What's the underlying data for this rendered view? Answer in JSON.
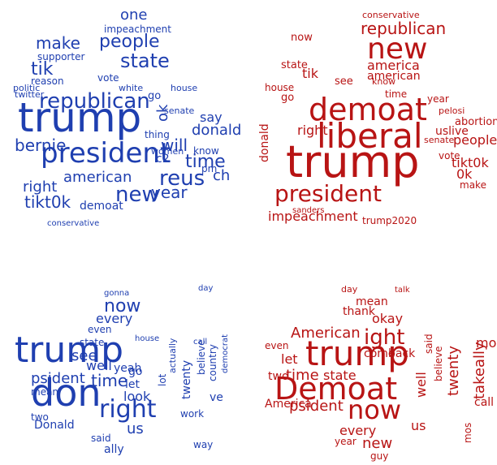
{
  "clouds": [
    {
      "color": "#1f3fb0",
      "words": [
        "trump",
        "president",
        "republican",
        "people",
        "state",
        "make",
        "tik",
        "one",
        "bernie",
        "reus",
        "new",
        "year",
        "american",
        "tikt0k",
        "right",
        "donald",
        "time",
        "will",
        "say",
        "demoat",
        "impeachment",
        "supporter",
        "reason",
        "conservative",
        "ch",
        "c2",
        "ok",
        "know",
        "pm",
        "thing",
        "women",
        "senate",
        "house",
        "white",
        "twitter",
        "politic",
        "go",
        "vote"
      ]
    },
    {
      "color": "#b81414",
      "words": [
        "trump",
        "liberal",
        "demoat",
        "new",
        "president",
        "republican",
        "america",
        "people",
        "tik",
        "tikt0k",
        "impeachment",
        "trump2020",
        "right",
        "vote",
        "abortion",
        "uslive",
        "0k",
        "house",
        "year",
        "donald",
        "make",
        "senate",
        "pelosi",
        "conservative",
        "american",
        "state",
        "now",
        "know",
        "time",
        "see",
        "go",
        "sanders"
      ]
    },
    {
      "color": "#1f3fb0",
      "words": [
        "trump",
        "don",
        "right",
        "psident",
        "time",
        "now",
        "every",
        "even",
        "look",
        "let",
        "go",
        "well",
        "yeah",
        "see",
        "us",
        "Donald",
        "mean",
        "two",
        "said",
        "ally",
        "twenty",
        "believe",
        "country",
        "lot",
        "actually",
        "democrat",
        "work",
        "way",
        "call",
        "day",
        "ve",
        "gonna",
        "house",
        "state"
      ]
    },
    {
      "color": "#b81414",
      "words": [
        "trump",
        "Demoat",
        "now",
        "ight",
        "American",
        "psident",
        "time",
        "state",
        "every",
        "okay",
        "new",
        "guy",
        "us",
        "let",
        "mean",
        "well",
        "twenty",
        "takeally",
        "believe",
        "said",
        "mo",
        "call",
        "come",
        "back",
        "two",
        "America",
        "year",
        "even",
        "thank",
        "mos",
        "day",
        "talk"
      ]
    }
  ]
}
